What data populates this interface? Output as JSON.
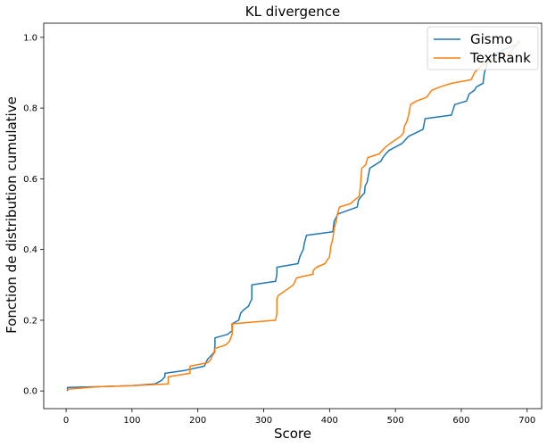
{
  "chart_data": {
    "type": "line",
    "title": "KL divergence",
    "xlabel": "Score",
    "ylabel": "Fonction de distribution cumulative",
    "xlim": [
      -34,
      722
    ],
    "ylim": [
      -0.05,
      1.04
    ],
    "xticks": [
      0,
      100,
      200,
      300,
      400,
      500,
      600,
      700
    ],
    "yticks": [
      0.0,
      0.2,
      0.4,
      0.6,
      0.8,
      1.0
    ],
    "grid": false,
    "legend_position": "top-right",
    "series": [
      {
        "name": "Gismo",
        "color": "#1f77b4",
        "points": [
          [
            2,
            0.0
          ],
          [
            2,
            0.01
          ],
          [
            50,
            0.012
          ],
          [
            100,
            0.015
          ],
          [
            135,
            0.02
          ],
          [
            145,
            0.03
          ],
          [
            150,
            0.04
          ],
          [
            150,
            0.05
          ],
          [
            180,
            0.058
          ],
          [
            210,
            0.07
          ],
          [
            212,
            0.08
          ],
          [
            215,
            0.09
          ],
          [
            220,
            0.1
          ],
          [
            225,
            0.11
          ],
          [
            226,
            0.13
          ],
          [
            226,
            0.15
          ],
          [
            245,
            0.16
          ],
          [
            252,
            0.17
          ],
          [
            252,
            0.19
          ],
          [
            262,
            0.2
          ],
          [
            265,
            0.22
          ],
          [
            270,
            0.23
          ],
          [
            277,
            0.24
          ],
          [
            282,
            0.26
          ],
          [
            282,
            0.3
          ],
          [
            318,
            0.31
          ],
          [
            320,
            0.33
          ],
          [
            320,
            0.35
          ],
          [
            352,
            0.36
          ],
          [
            355,
            0.38
          ],
          [
            360,
            0.4
          ],
          [
            362,
            0.42
          ],
          [
            365,
            0.44
          ],
          [
            405,
            0.45
          ],
          [
            407,
            0.48
          ],
          [
            410,
            0.49
          ],
          [
            412,
            0.5
          ],
          [
            442,
            0.52
          ],
          [
            444,
            0.54
          ],
          [
            448,
            0.55
          ],
          [
            453,
            0.56
          ],
          [
            454,
            0.58
          ],
          [
            457,
            0.59
          ],
          [
            459,
            0.61
          ],
          [
            461,
            0.63
          ],
          [
            478,
            0.65
          ],
          [
            481,
            0.66
          ],
          [
            485,
            0.67
          ],
          [
            490,
            0.68
          ],
          [
            510,
            0.7
          ],
          [
            515,
            0.71
          ],
          [
            520,
            0.72
          ],
          [
            542,
            0.74
          ],
          [
            545,
            0.77
          ],
          [
            585,
            0.78
          ],
          [
            590,
            0.81
          ],
          [
            608,
            0.82
          ],
          [
            612,
            0.84
          ],
          [
            620,
            0.85
          ],
          [
            623,
            0.86
          ],
          [
            633,
            0.87
          ],
          [
            635,
            0.9
          ],
          [
            640,
            0.93
          ],
          [
            648,
            0.95
          ],
          [
            660,
            0.96
          ],
          [
            670,
            0.97
          ],
          [
            685,
            0.98
          ],
          [
            688,
            0.99
          ]
        ]
      },
      {
        "name": "TextRank",
        "color": "#ff7f0e",
        "points": [
          [
            2,
            0.005
          ],
          [
            50,
            0.012
          ],
          [
            100,
            0.015
          ],
          [
            155,
            0.02
          ],
          [
            155,
            0.04
          ],
          [
            188,
            0.05
          ],
          [
            188,
            0.07
          ],
          [
            215,
            0.08
          ],
          [
            220,
            0.09
          ],
          [
            222,
            0.1
          ],
          [
            226,
            0.11
          ],
          [
            226,
            0.12
          ],
          [
            242,
            0.13
          ],
          [
            248,
            0.14
          ],
          [
            250,
            0.15
          ],
          [
            252,
            0.16
          ],
          [
            253,
            0.19
          ],
          [
            318,
            0.2
          ],
          [
            320,
            0.22
          ],
          [
            320,
            0.26
          ],
          [
            322,
            0.27
          ],
          [
            330,
            0.28
          ],
          [
            345,
            0.3
          ],
          [
            350,
            0.32
          ],
          [
            375,
            0.33
          ],
          [
            375,
            0.34
          ],
          [
            380,
            0.35
          ],
          [
            393,
            0.36
          ],
          [
            400,
            0.38
          ],
          [
            402,
            0.41
          ],
          [
            405,
            0.43
          ],
          [
            407,
            0.46
          ],
          [
            410,
            0.48
          ],
          [
            412,
            0.5
          ],
          [
            415,
            0.52
          ],
          [
            432,
            0.53
          ],
          [
            438,
            0.54
          ],
          [
            445,
            0.55
          ],
          [
            447,
            0.58
          ],
          [
            448,
            0.61
          ],
          [
            449,
            0.63
          ],
          [
            455,
            0.64
          ],
          [
            458,
            0.66
          ],
          [
            475,
            0.67
          ],
          [
            480,
            0.68
          ],
          [
            485,
            0.69
          ],
          [
            492,
            0.7
          ],
          [
            500,
            0.71
          ],
          [
            508,
            0.72
          ],
          [
            512,
            0.73
          ],
          [
            514,
            0.75
          ],
          [
            517,
            0.76
          ],
          [
            520,
            0.78
          ],
          [
            523,
            0.81
          ],
          [
            532,
            0.82
          ],
          [
            547,
            0.83
          ],
          [
            555,
            0.85
          ],
          [
            568,
            0.86
          ],
          [
            585,
            0.87
          ],
          [
            615,
            0.88
          ],
          [
            620,
            0.9
          ],
          [
            625,
            0.91
          ],
          [
            632,
            0.92
          ],
          [
            640,
            0.93
          ],
          [
            655,
            0.94
          ],
          [
            668,
            0.95
          ],
          [
            675,
            0.96
          ],
          [
            680,
            0.97
          ],
          [
            685,
            0.98
          ],
          [
            690,
            0.99
          ]
        ]
      }
    ]
  }
}
